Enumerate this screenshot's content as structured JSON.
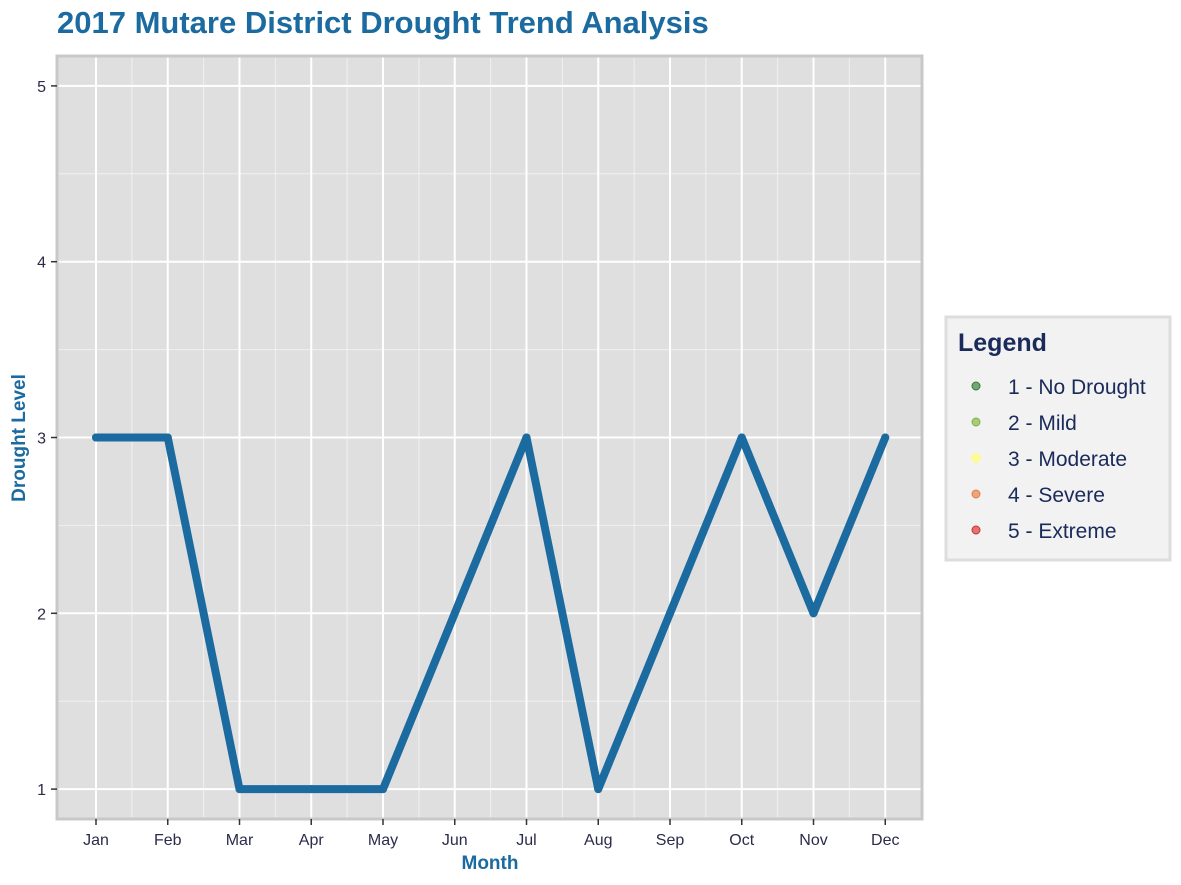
{
  "chart_data": {
    "type": "line",
    "title": "2017 Mutare District Drought Trend Analysis",
    "xlabel": "Month",
    "ylabel": "Drought Level",
    "categories": [
      "Jan",
      "Feb",
      "Mar",
      "Apr",
      "May",
      "Jun",
      "Jul",
      "Aug",
      "Sep",
      "Oct",
      "Nov",
      "Dec"
    ],
    "series": [
      {
        "values": [
          3,
          3,
          1,
          1,
          1,
          2,
          3,
          1,
          2,
          3,
          2,
          3
        ]
      }
    ],
    "ylim": [
      0.83,
      5.17
    ],
    "yticks": [
      1,
      2,
      3,
      4,
      5
    ],
    "grid": true,
    "legend": {
      "title": "Legend",
      "placement": "right",
      "items": [
        {
          "label": "1 - No Drought",
          "color": "#2e7d32"
        },
        {
          "label": "2 - Mild",
          "color": "#7cb342"
        },
        {
          "label": "3 - Moderate",
          "color": "#ffff66"
        },
        {
          "label": "4 - Severe",
          "color": "#e57c43"
        },
        {
          "label": "5 - Extreme",
          "color": "#d32f2f"
        }
      ]
    }
  },
  "colors": {
    "line": "#1b6aa0",
    "title": "#1b6aa0",
    "axis_title": "#1b6aa0",
    "legend_text": "#1a2a5a",
    "panel_bg": "#dfdfdf",
    "panel_border": "#c8c8c8",
    "grid": "#ffffff",
    "tick_text": "#2b2b4a",
    "legend_bg": "#f2f2f2"
  }
}
